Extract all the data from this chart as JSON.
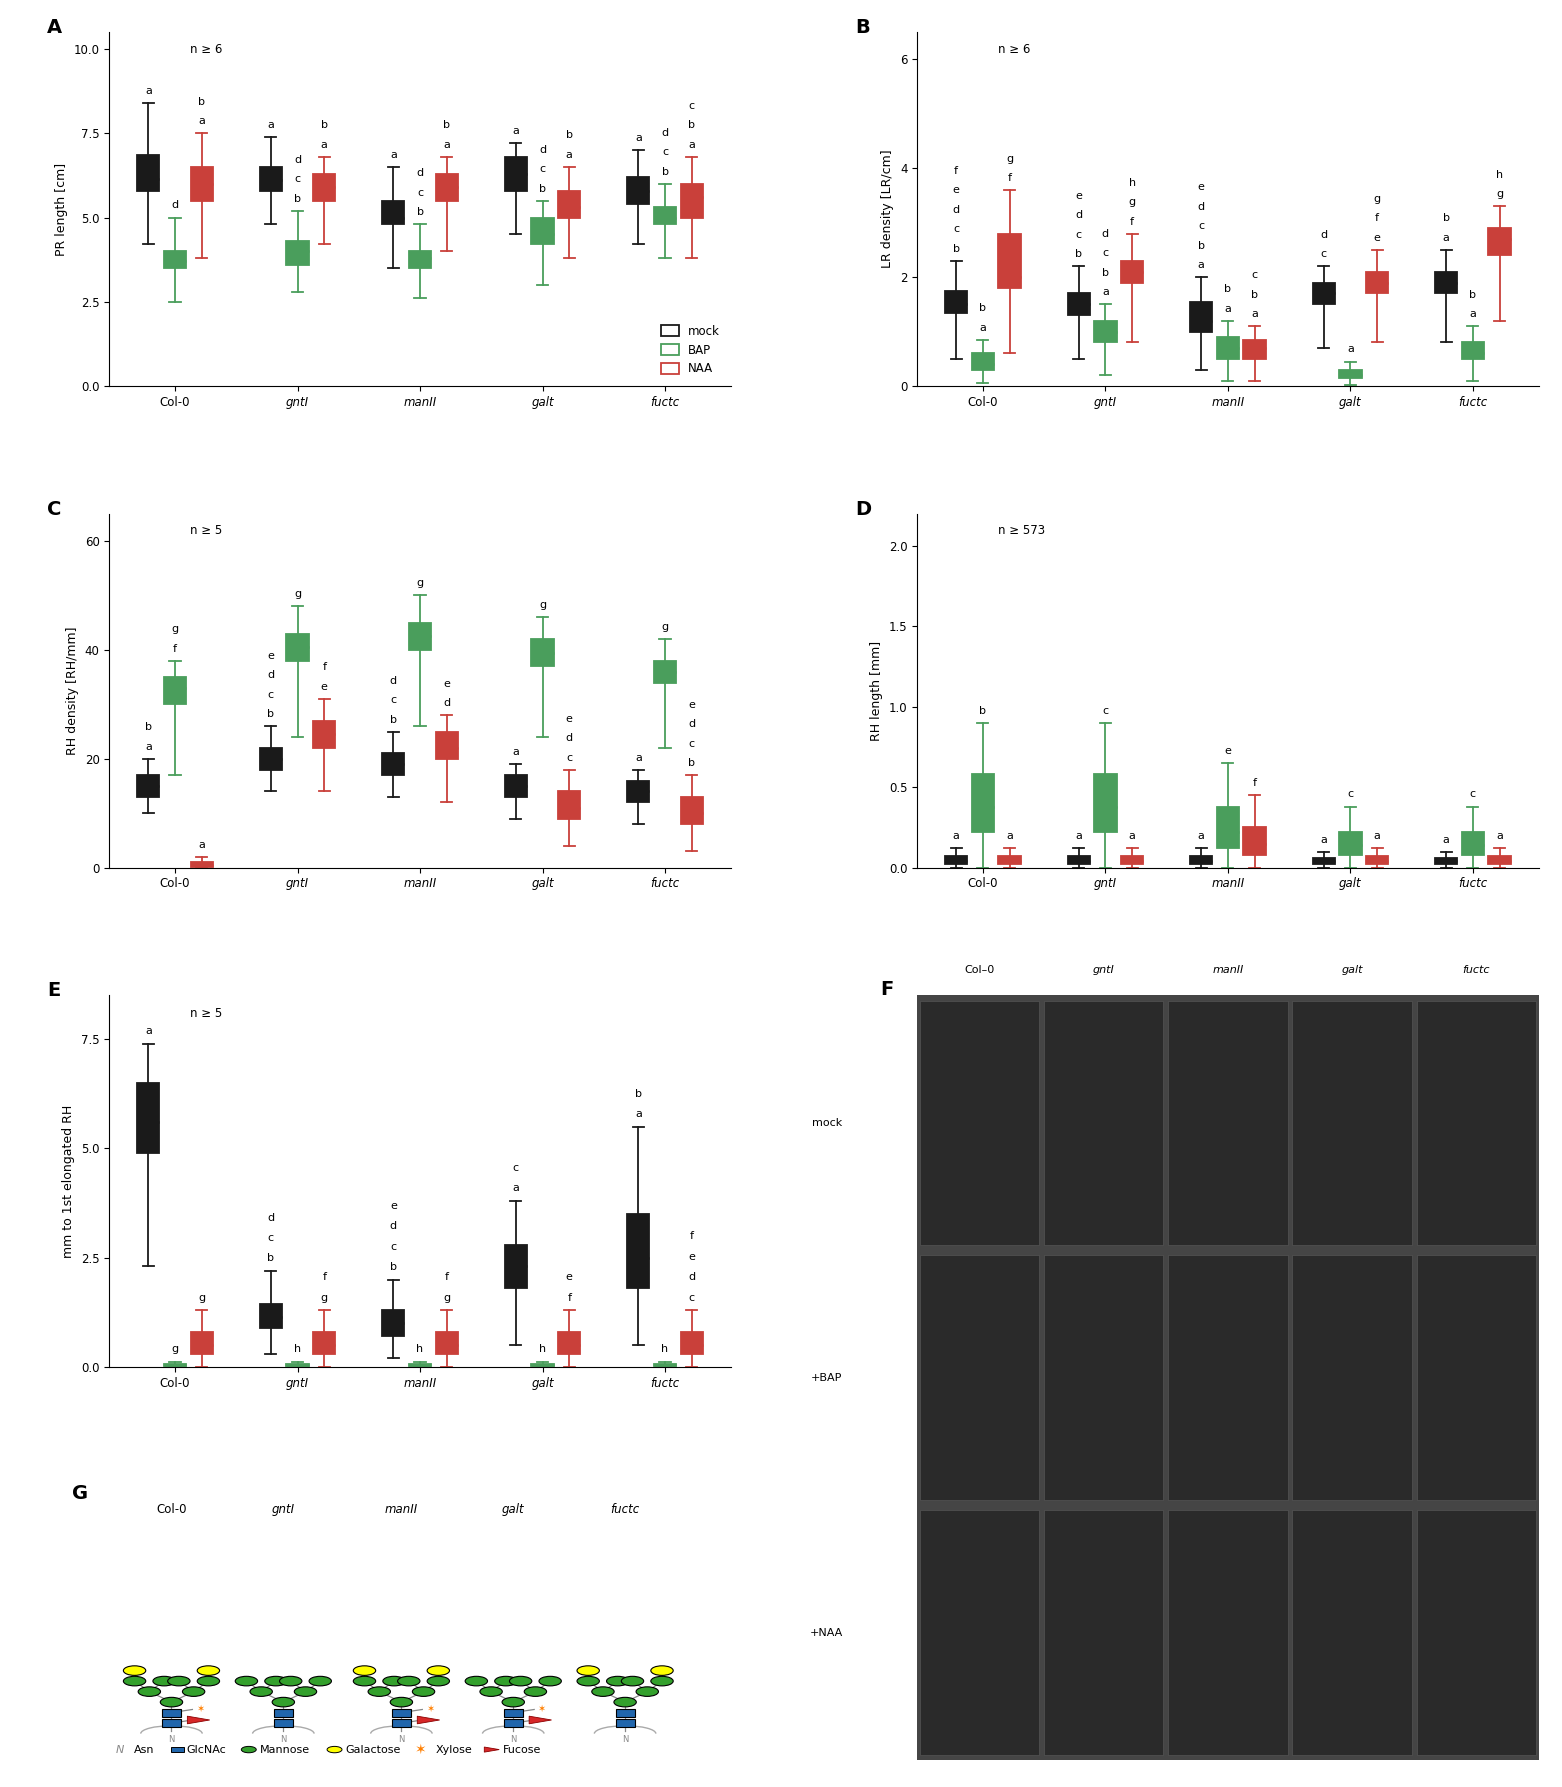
{
  "panel_A": {
    "ylabel": "PR length [cm]",
    "ylim": [
      0.0,
      10.5
    ],
    "yticks": [
      0.0,
      2.5,
      5.0,
      7.5,
      10.0
    ],
    "n_label": "n ≥ 6",
    "groups": [
      "Col-0",
      "gntI",
      "manII",
      "galt",
      "fuctc"
    ],
    "boxes": {
      "mock": [
        {
          "q1": 5.8,
          "median": 6.15,
          "q3": 6.85,
          "whislo": 4.2,
          "whishi": 8.4
        },
        {
          "q1": 5.8,
          "median": 6.1,
          "q3": 6.5,
          "whislo": 4.8,
          "whishi": 7.4
        },
        {
          "q1": 4.8,
          "median": 5.0,
          "q3": 5.5,
          "whislo": 3.5,
          "whishi": 6.5
        },
        {
          "q1": 5.8,
          "median": 6.3,
          "q3": 6.8,
          "whislo": 4.5,
          "whishi": 7.2
        },
        {
          "q1": 5.4,
          "median": 5.8,
          "q3": 6.2,
          "whislo": 4.2,
          "whishi": 7.0
        }
      ],
      "bap": [
        {
          "q1": 3.5,
          "median": 3.7,
          "q3": 4.0,
          "whislo": 2.5,
          "whishi": 5.0
        },
        {
          "q1": 3.6,
          "median": 4.0,
          "q3": 4.3,
          "whislo": 2.8,
          "whishi": 5.2
        },
        {
          "q1": 3.5,
          "median": 3.8,
          "q3": 4.0,
          "whislo": 2.6,
          "whishi": 4.8
        },
        {
          "q1": 4.2,
          "median": 4.5,
          "q3": 5.0,
          "whislo": 3.0,
          "whishi": 5.5
        },
        {
          "q1": 4.8,
          "median": 5.0,
          "q3": 5.3,
          "whislo": 3.8,
          "whishi": 6.0
        }
      ],
      "naa": [
        {
          "q1": 5.5,
          "median": 6.0,
          "q3": 6.5,
          "whislo": 3.8,
          "whishi": 7.5
        },
        {
          "q1": 5.5,
          "median": 5.9,
          "q3": 6.3,
          "whislo": 4.2,
          "whishi": 6.8
        },
        {
          "q1": 5.5,
          "median": 5.9,
          "q3": 6.3,
          "whislo": 4.0,
          "whishi": 6.8
        },
        {
          "q1": 5.0,
          "median": 5.3,
          "q3": 5.8,
          "whislo": 3.8,
          "whishi": 6.5
        },
        {
          "q1": 5.0,
          "median": 5.6,
          "q3": 6.0,
          "whislo": 3.8,
          "whishi": 6.8
        }
      ]
    },
    "letters_mock": [
      [
        "a"
      ],
      [
        "a"
      ],
      [
        "a"
      ],
      [
        "a"
      ],
      [
        "a"
      ]
    ],
    "letters_bap": [
      [
        "d"
      ],
      [
        "b",
        "c",
        "d"
      ],
      [
        "b",
        "c",
        "d"
      ],
      [
        "b",
        "c",
        "d"
      ],
      [
        "b",
        "c",
        "d"
      ]
    ],
    "letters_naa": [
      [
        "a",
        "b"
      ],
      [
        "a",
        "b"
      ],
      [
        "a",
        "b"
      ],
      [
        "a",
        "b"
      ],
      [
        "a",
        "b",
        "c"
      ]
    ]
  },
  "panel_B": {
    "ylabel": "LR density [LR/cm]",
    "ylim": [
      0.0,
      6.5
    ],
    "yticks": [
      0,
      2,
      4,
      6
    ],
    "n_label": "n ≥ 6",
    "groups": [
      "Col-0",
      "gntI",
      "manII",
      "galt",
      "fuctc"
    ],
    "boxes": {
      "mock": [
        {
          "q1": 1.35,
          "median": 1.5,
          "q3": 1.75,
          "whislo": 0.5,
          "whishi": 2.3
        },
        {
          "q1": 1.3,
          "median": 1.5,
          "q3": 1.7,
          "whislo": 0.5,
          "whishi": 2.2
        },
        {
          "q1": 1.0,
          "median": 1.2,
          "q3": 1.55,
          "whislo": 0.3,
          "whishi": 2.0
        },
        {
          "q1": 1.5,
          "median": 1.7,
          "q3": 1.9,
          "whislo": 0.7,
          "whishi": 2.2
        },
        {
          "q1": 1.7,
          "median": 1.9,
          "q3": 2.1,
          "whislo": 0.8,
          "whishi": 2.5
        }
      ],
      "bap": [
        {
          "q1": 0.3,
          "median": 0.4,
          "q3": 0.6,
          "whislo": 0.05,
          "whishi": 0.85
        },
        {
          "q1": 0.8,
          "median": 1.0,
          "q3": 1.2,
          "whislo": 0.2,
          "whishi": 1.5
        },
        {
          "q1": 0.5,
          "median": 0.7,
          "q3": 0.9,
          "whislo": 0.1,
          "whishi": 1.2
        },
        {
          "q1": 0.15,
          "median": 0.2,
          "q3": 0.3,
          "whislo": 0.02,
          "whishi": 0.45
        },
        {
          "q1": 0.5,
          "median": 0.6,
          "q3": 0.8,
          "whislo": 0.1,
          "whishi": 1.1
        }
      ],
      "naa": [
        {
          "q1": 1.8,
          "median": 2.0,
          "q3": 2.8,
          "whislo": 0.6,
          "whishi": 3.6
        },
        {
          "q1": 1.9,
          "median": 2.1,
          "q3": 2.3,
          "whislo": 0.8,
          "whishi": 2.8
        },
        {
          "q1": 0.5,
          "median": 0.7,
          "q3": 0.85,
          "whislo": 0.1,
          "whishi": 1.1
        },
        {
          "q1": 1.7,
          "median": 1.9,
          "q3": 2.1,
          "whislo": 0.8,
          "whishi": 2.5
        },
        {
          "q1": 2.4,
          "median": 2.7,
          "q3": 2.9,
          "whislo": 1.2,
          "whishi": 3.3
        }
      ]
    },
    "letters_mock": [
      [
        "b",
        "c",
        "d",
        "e",
        "f"
      ],
      [
        "b",
        "c",
        "d",
        "e"
      ],
      [
        "a",
        "b",
        "c",
        "d",
        "e"
      ],
      [
        "c",
        "d"
      ],
      [
        "a",
        "b"
      ]
    ],
    "letters_bap": [
      [
        "a",
        "b"
      ],
      [
        "a",
        "b",
        "c",
        "d"
      ],
      [
        "a",
        "b"
      ],
      [
        "a"
      ],
      [
        "a",
        "b"
      ]
    ],
    "letters_naa": [
      [
        "f",
        "g"
      ],
      [
        "f",
        "g",
        "h"
      ],
      [
        "a",
        "b",
        "c"
      ],
      [
        "e",
        "f",
        "g"
      ],
      [
        "g",
        "h"
      ]
    ]
  },
  "panel_C": {
    "ylabel": "RH density [RH/mm]",
    "ylim": [
      0,
      65
    ],
    "yticks": [
      0,
      20,
      40,
      60
    ],
    "n_label": "n ≥ 5",
    "groups": [
      "Col-0",
      "gntI",
      "manII",
      "galt",
      "fuctc"
    ],
    "boxes": {
      "mock": [
        {
          "q1": 13.0,
          "median": 15.0,
          "q3": 17.0,
          "whislo": 10.0,
          "whishi": 20.0
        },
        {
          "q1": 18.0,
          "median": 20.0,
          "q3": 22.0,
          "whislo": 14.0,
          "whishi": 26.0
        },
        {
          "q1": 17.0,
          "median": 19.0,
          "q3": 21.0,
          "whislo": 13.0,
          "whishi": 25.0
        },
        {
          "q1": 13.0,
          "median": 15.0,
          "q3": 17.0,
          "whislo": 9.0,
          "whishi": 19.0
        },
        {
          "q1": 12.0,
          "median": 14.0,
          "q3": 16.0,
          "whislo": 8.0,
          "whishi": 18.0
        }
      ],
      "bap": [
        {
          "q1": 30.0,
          "median": 33.0,
          "q3": 35.0,
          "whislo": 17.0,
          "whishi": 38.0
        },
        {
          "q1": 38.0,
          "median": 40.5,
          "q3": 43.0,
          "whislo": 24.0,
          "whishi": 48.0
        },
        {
          "q1": 40.0,
          "median": 42.5,
          "q3": 45.0,
          "whislo": 26.0,
          "whishi": 50.0
        },
        {
          "q1": 37.0,
          "median": 39.5,
          "q3": 42.0,
          "whislo": 24.0,
          "whishi": 46.0
        },
        {
          "q1": 34.0,
          "median": 36.0,
          "q3": 38.0,
          "whislo": 22.0,
          "whishi": 42.0
        }
      ],
      "naa": [
        {
          "q1": 0.2,
          "median": 0.5,
          "q3": 1.0,
          "whislo": 0.0,
          "whishi": 2.0
        },
        {
          "q1": 22.0,
          "median": 24.5,
          "q3": 27.0,
          "whislo": 14.0,
          "whishi": 31.0
        },
        {
          "q1": 20.0,
          "median": 22.0,
          "q3": 25.0,
          "whislo": 12.0,
          "whishi": 28.0
        },
        {
          "q1": 9.0,
          "median": 11.0,
          "q3": 14.0,
          "whislo": 4.0,
          "whishi": 18.0
        },
        {
          "q1": 8.0,
          "median": 10.0,
          "q3": 13.0,
          "whislo": 3.0,
          "whishi": 17.0
        }
      ]
    },
    "letters_mock": [
      [
        "a",
        "b"
      ],
      [
        "b",
        "c",
        "d",
        "e"
      ],
      [
        "b",
        "c",
        "d"
      ],
      [
        "a"
      ],
      [
        "a"
      ]
    ],
    "letters_bap": [
      [
        "f",
        "g"
      ],
      [
        "g"
      ],
      [
        "g"
      ],
      [
        "g"
      ],
      [
        "g"
      ]
    ],
    "letters_naa": [
      [
        "a"
      ],
      [
        "e",
        "f"
      ],
      [
        "d",
        "e"
      ],
      [
        "c",
        "d",
        "e"
      ],
      [
        "b",
        "c",
        "d",
        "e"
      ]
    ]
  },
  "panel_D": {
    "ylabel": "RH length [mm]",
    "ylim": [
      0.0,
      2.2
    ],
    "yticks": [
      0.0,
      0.5,
      1.0,
      1.5,
      2.0
    ],
    "n_label": "n ≥ 573",
    "groups": [
      "Col-0",
      "gntI",
      "manII",
      "galt",
      "fuctc"
    ],
    "boxes": {
      "mock": [
        {
          "q1": 0.02,
          "median": 0.04,
          "q3": 0.07,
          "whislo": 0.0,
          "whishi": 0.12
        },
        {
          "q1": 0.02,
          "median": 0.04,
          "q3": 0.07,
          "whislo": 0.0,
          "whishi": 0.12
        },
        {
          "q1": 0.02,
          "median": 0.04,
          "q3": 0.07,
          "whislo": 0.0,
          "whishi": 0.12
        },
        {
          "q1": 0.02,
          "median": 0.04,
          "q3": 0.06,
          "whislo": 0.0,
          "whishi": 0.1
        },
        {
          "q1": 0.02,
          "median": 0.04,
          "q3": 0.06,
          "whislo": 0.0,
          "whishi": 0.1
        }
      ],
      "bap": [
        {
          "q1": 0.22,
          "median": 0.38,
          "q3": 0.58,
          "whislo": 0.0,
          "whishi": 0.9
        },
        {
          "q1": 0.22,
          "median": 0.38,
          "q3": 0.58,
          "whislo": 0.0,
          "whishi": 0.9
        },
        {
          "q1": 0.12,
          "median": 0.22,
          "q3": 0.38,
          "whislo": 0.0,
          "whishi": 0.65
        },
        {
          "q1": 0.08,
          "median": 0.14,
          "q3": 0.22,
          "whislo": 0.0,
          "whishi": 0.38
        },
        {
          "q1": 0.08,
          "median": 0.14,
          "q3": 0.22,
          "whislo": 0.0,
          "whishi": 0.38
        }
      ],
      "naa": [
        {
          "q1": 0.02,
          "median": 0.04,
          "q3": 0.07,
          "whislo": 0.0,
          "whishi": 0.12
        },
        {
          "q1": 0.02,
          "median": 0.04,
          "q3": 0.07,
          "whislo": 0.0,
          "whishi": 0.12
        },
        {
          "q1": 0.08,
          "median": 0.15,
          "q3": 0.25,
          "whislo": 0.0,
          "whishi": 0.45
        },
        {
          "q1": 0.02,
          "median": 0.04,
          "q3": 0.07,
          "whislo": 0.0,
          "whishi": 0.12
        },
        {
          "q1": 0.02,
          "median": 0.04,
          "q3": 0.07,
          "whislo": 0.0,
          "whishi": 0.12
        }
      ]
    },
    "letters_mock": [
      [
        "a"
      ],
      [
        "a"
      ],
      [
        "a"
      ],
      [
        "a"
      ],
      [
        "a"
      ]
    ],
    "letters_bap": [
      [
        "b"
      ],
      [
        "c"
      ],
      [
        "e"
      ],
      [
        "c"
      ],
      [
        "c"
      ]
    ],
    "letters_naa": [
      [
        "a"
      ],
      [
        "a"
      ],
      [
        "f"
      ],
      [
        "a"
      ],
      [
        "a"
      ]
    ]
  },
  "panel_E": {
    "ylabel": "mm to 1st elongated RH",
    "ylim": [
      0.0,
      8.5
    ],
    "yticks": [
      0.0,
      2.5,
      5.0,
      7.5
    ],
    "n_label": "n ≥ 5",
    "groups": [
      "Col-0",
      "gntI",
      "manII",
      "galt",
      "fuctc"
    ],
    "boxes": {
      "mock": [
        {
          "q1": 4.9,
          "median": 5.6,
          "q3": 6.5,
          "whislo": 2.3,
          "whishi": 7.4
        },
        {
          "q1": 0.9,
          "median": 1.15,
          "q3": 1.45,
          "whislo": 0.3,
          "whishi": 2.2
        },
        {
          "q1": 0.7,
          "median": 1.0,
          "q3": 1.3,
          "whislo": 0.2,
          "whishi": 2.0
        },
        {
          "q1": 1.8,
          "median": 2.3,
          "q3": 2.8,
          "whislo": 0.5,
          "whishi": 3.8
        },
        {
          "q1": 1.8,
          "median": 2.5,
          "q3": 3.5,
          "whislo": 0.5,
          "whishi": 5.5
        }
      ],
      "bap": [
        {
          "q1": 0.02,
          "median": 0.04,
          "q3": 0.07,
          "whislo": 0.0,
          "whishi": 0.12
        },
        {
          "q1": 0.02,
          "median": 0.04,
          "q3": 0.07,
          "whislo": 0.0,
          "whishi": 0.12
        },
        {
          "q1": 0.02,
          "median": 0.04,
          "q3": 0.07,
          "whislo": 0.0,
          "whishi": 0.12
        },
        {
          "q1": 0.02,
          "median": 0.04,
          "q3": 0.07,
          "whislo": 0.0,
          "whishi": 0.12
        },
        {
          "q1": 0.02,
          "median": 0.04,
          "q3": 0.07,
          "whislo": 0.0,
          "whishi": 0.12
        }
      ],
      "naa": [
        {
          "q1": 0.3,
          "median": 0.5,
          "q3": 0.8,
          "whislo": 0.0,
          "whishi": 1.3
        },
        {
          "q1": 0.3,
          "median": 0.5,
          "q3": 0.8,
          "whislo": 0.0,
          "whishi": 1.3
        },
        {
          "q1": 0.3,
          "median": 0.5,
          "q3": 0.8,
          "whislo": 0.0,
          "whishi": 1.3
        },
        {
          "q1": 0.3,
          "median": 0.5,
          "q3": 0.8,
          "whislo": 0.0,
          "whishi": 1.3
        },
        {
          "q1": 0.3,
          "median": 0.5,
          "q3": 0.8,
          "whislo": 0.0,
          "whishi": 1.3
        }
      ]
    },
    "letters_mock": [
      [
        "a"
      ],
      [
        "b",
        "c",
        "d"
      ],
      [
        "b",
        "c",
        "d",
        "e"
      ],
      [
        "a",
        "c"
      ],
      [
        "a",
        "b"
      ]
    ],
    "letters_bap": [
      [
        "g"
      ],
      [
        "h"
      ],
      [
        "h"
      ],
      [
        "h"
      ],
      [
        "h"
      ]
    ],
    "letters_naa": [
      [
        "g"
      ],
      [
        "g",
        "f"
      ],
      [
        "g",
        "f"
      ],
      [
        "f",
        "e"
      ],
      [
        "c",
        "d",
        "e",
        "f"
      ]
    ]
  },
  "mock_color": "#1a1a1a",
  "bap_color": "#4a9e5c",
  "naa_color": "#c9403a",
  "groups": [
    "Col-0",
    "gntI",
    "manII",
    "galt",
    "fuctc"
  ]
}
